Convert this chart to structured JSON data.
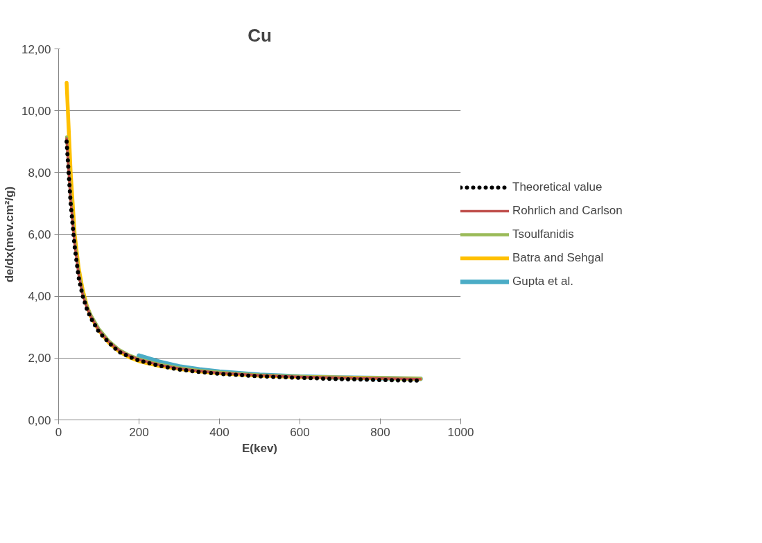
{
  "chart_data": {
    "type": "line",
    "title": "Cu",
    "xlabel": "E(kev)",
    "ylabel": "de/dx(mev.cm²/g)",
    "xlim": [
      0,
      1000
    ],
    "xticks": [
      0,
      200,
      400,
      600,
      800,
      1000
    ],
    "ylim": [
      0,
      12
    ],
    "yticks": [
      {
        "value": 0,
        "label": "0,00"
      },
      {
        "value": 2,
        "label": "2,00"
      },
      {
        "value": 4,
        "label": "4,00"
      },
      {
        "value": 6,
        "label": "6,00"
      },
      {
        "value": 8,
        "label": "8,00"
      },
      {
        "value": 10,
        "label": "10,00"
      },
      {
        "value": 12,
        "label": "12,00"
      }
    ],
    "grid": "y",
    "legend": "right",
    "marker": "none",
    "series": [
      {
        "name": "Theoretical value",
        "color": "#000000",
        "line_style": "dotted",
        "x": [
          20,
          30,
          40,
          50,
          60,
          70,
          80,
          100,
          125,
          150,
          175,
          200,
          250,
          300,
          350,
          400,
          450,
          500,
          600,
          700,
          800,
          900
        ],
        "values": [
          9.0,
          7.0,
          5.6,
          4.6,
          4.0,
          3.6,
          3.3,
          2.85,
          2.5,
          2.2,
          2.05,
          1.92,
          1.75,
          1.63,
          1.55,
          1.49,
          1.45,
          1.41,
          1.36,
          1.32,
          1.29,
          1.27
        ]
      },
      {
        "name": "Rohrlich and Carlson",
        "color": "#c0504d",
        "line_style": "solid",
        "x": [
          20,
          30,
          40,
          50,
          60,
          70,
          80,
          100,
          125,
          150,
          175,
          200,
          250,
          300,
          350,
          400,
          450,
          500,
          600,
          700,
          800,
          900
        ],
        "values": [
          9.1,
          7.1,
          5.7,
          4.7,
          4.05,
          3.65,
          3.35,
          2.9,
          2.52,
          2.25,
          2.08,
          1.95,
          1.78,
          1.66,
          1.58,
          1.52,
          1.48,
          1.44,
          1.39,
          1.36,
          1.34,
          1.32
        ]
      },
      {
        "name": "Tsoulfanidis",
        "color": "#9bbb59",
        "line_style": "solid",
        "x": [
          20,
          30,
          40,
          50,
          60,
          70,
          80,
          100,
          125,
          150,
          175,
          200,
          250,
          300,
          350,
          400,
          450,
          500,
          600,
          700,
          800,
          900
        ],
        "values": [
          9.15,
          7.2,
          5.8,
          4.75,
          4.1,
          3.7,
          3.4,
          2.95,
          2.56,
          2.28,
          2.1,
          1.97,
          1.8,
          1.68,
          1.6,
          1.54,
          1.49,
          1.45,
          1.4,
          1.37,
          1.35,
          1.33
        ]
      },
      {
        "name": "Batra and Sehgal",
        "color": "#ffc000",
        "line_style": "solid",
        "x": [
          20,
          30,
          40,
          50,
          60,
          70,
          80,
          100,
          125,
          150,
          175,
          200,
          250,
          300,
          350,
          400,
          450,
          500,
          600,
          700,
          800,
          900
        ],
        "values": [
          10.9,
          8.0,
          6.0,
          4.9,
          4.2,
          3.7,
          3.35,
          2.9,
          2.5,
          2.22,
          2.03,
          1.9,
          1.75,
          1.65,
          1.57,
          1.51,
          1.47,
          1.43,
          1.39,
          1.37,
          1.35,
          1.33
        ]
      },
      {
        "name": "Gupta et al.",
        "color": "#4bacc6",
        "line_style": "solid",
        "x": [
          200,
          250,
          300,
          350,
          400,
          500,
          600,
          700,
          800,
          900
        ],
        "values": [
          2.08,
          1.88,
          1.73,
          1.63,
          1.56,
          1.46,
          1.4,
          1.37,
          1.35,
          1.33
        ]
      }
    ]
  }
}
